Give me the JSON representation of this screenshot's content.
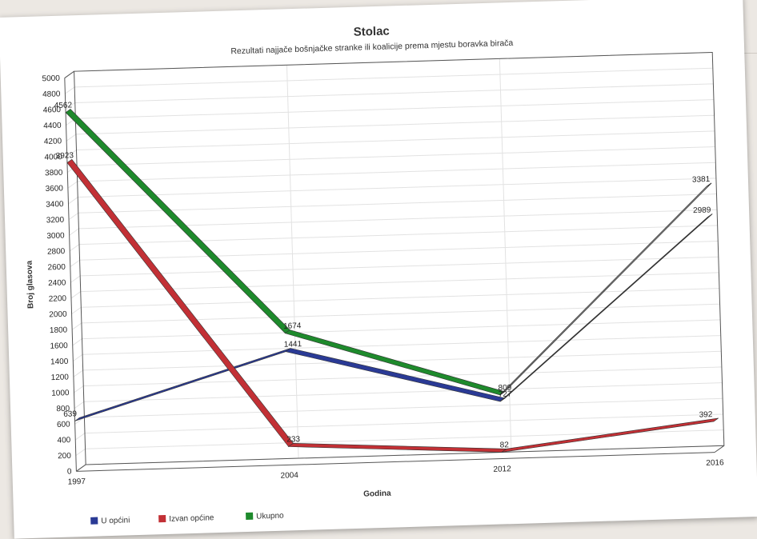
{
  "chart_data": {
    "type": "line",
    "title": "Stolac",
    "subtitle": "Rezultati najjače bošnjačke stranke ili koalicije prema mjestu boravka birača",
    "xlabel": "Godina",
    "ylabel": "Broj glasova",
    "categories": [
      "1997",
      "2004",
      "2012",
      "2016"
    ],
    "ylim": [
      0,
      5000
    ],
    "ytick_step": 200,
    "yticks": [
      "0",
      "200",
      "400",
      "600",
      "800",
      "1000",
      "1200",
      "1400",
      "1600",
      "1800",
      "2000",
      "2200",
      "2400",
      "2600",
      "2800",
      "3000",
      "3200",
      "3400",
      "3600",
      "3800",
      "4000",
      "4200",
      "4400",
      "4600",
      "4800",
      "5000"
    ],
    "grid": true,
    "legend_position": "bottom-left",
    "series": [
      {
        "name": "U općini",
        "color": "#2a3a95",
        "values": [
          639,
          1441,
          727,
          2989
        ]
      },
      {
        "name": "Izvan općine",
        "color": "#c23035",
        "values": [
          3923,
          233,
          82,
          392
        ]
      },
      {
        "name": "Ukupno",
        "color": "#1e8a2c",
        "values": [
          4562,
          1674,
          809,
          3381
        ]
      }
    ],
    "data_labels": [
      [
        "639",
        "1441",
        "727",
        "2989"
      ],
      [
        "3923",
        "233",
        "82",
        "392"
      ],
      [
        "4562",
        "1674",
        "809",
        "3381"
      ]
    ]
  }
}
